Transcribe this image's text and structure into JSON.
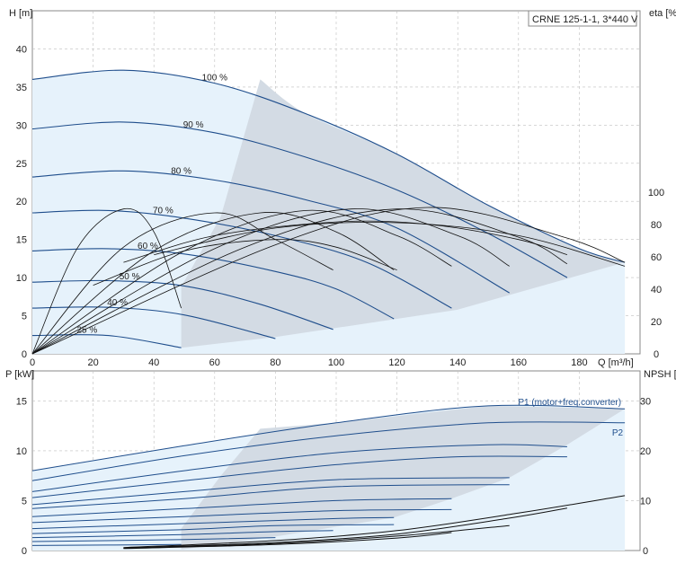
{
  "chart_data": [
    {
      "type": "line",
      "title": "CRNE 125-1-1, 3*440 V",
      "xlabel": "Q [m³/h]",
      "ylabel_left": "H [m]",
      "ylabel_right": "eta [%]",
      "x_ticks": [
        "0",
        "20",
        "40",
        "60",
        "80",
        "100",
        "120",
        "140",
        "160",
        "180"
      ],
      "y_ticks_left": [
        "0",
        "5",
        "10",
        "15",
        "20",
        "25",
        "30",
        "35",
        "40"
      ],
      "y_ticks_right": [
        "0",
        "20",
        "40",
        "60",
        "80",
        "100"
      ],
      "xlim": [
        0,
        200
      ],
      "ylim_left": [
        0,
        45
      ],
      "ylim_right": [
        0,
        212
      ],
      "grid": true,
      "colors": {
        "head": "#1f4e8c",
        "eta": "#111111",
        "area": "#d3dbe4",
        "area_light": "#e6f2fb",
        "grid": "#bfbfbf"
      },
      "series": [
        {
          "name": "100 %",
          "kind": "head",
          "points": [
            [
              0,
              36
            ],
            [
              30,
              37.2
            ],
            [
              60,
              35.5
            ],
            [
              90,
              31.5
            ],
            [
              120,
              26.2
            ],
            [
              150,
              19.5
            ],
            [
              180,
              13.8
            ],
            [
              195,
              12
            ]
          ]
        },
        {
          "name": "90 %",
          "kind": "head",
          "points": [
            [
              0,
              29.5
            ],
            [
              30,
              30.4
            ],
            [
              60,
              29
            ],
            [
              90,
              25.8
            ],
            [
              120,
              21.5
            ],
            [
              150,
              15.8
            ],
            [
              176,
              10
            ]
          ]
        },
        {
          "name": "80 %",
          "kind": "head",
          "points": [
            [
              0,
              23.2
            ],
            [
              30,
              24
            ],
            [
              60,
              22.8
            ],
            [
              90,
              20.2
            ],
            [
              120,
              16.5
            ],
            [
              157,
              8
            ]
          ]
        },
        {
          "name": "70 %",
          "kind": "head",
          "points": [
            [
              0,
              18.5
            ],
            [
              25,
              18.8
            ],
            [
              50,
              17.8
            ],
            [
              80,
              15.5
            ],
            [
              110,
              12
            ],
            [
              138,
              6
            ]
          ]
        },
        {
          "name": "60 %",
          "kind": "head",
          "points": [
            [
              0,
              13.5
            ],
            [
              25,
              13.8
            ],
            [
              50,
              13.1
            ],
            [
              80,
              10.8
            ],
            [
              100,
              8.5
            ],
            [
              119,
              4.6
            ]
          ]
        },
        {
          "name": "50 %",
          "kind": "head",
          "points": [
            [
              0,
              9.4
            ],
            [
              25,
              9.6
            ],
            [
              50,
              8.9
            ],
            [
              75,
              6.5
            ],
            [
              99,
              3.2
            ]
          ]
        },
        {
          "name": "40 %",
          "kind": "head",
          "points": [
            [
              0,
              6
            ],
            [
              25,
              6.1
            ],
            [
              50,
              5.1
            ],
            [
              80,
              2
            ]
          ]
        },
        {
          "name": "25 %",
          "kind": "head",
          "points": [
            [
              0,
              2.4
            ],
            [
              25,
              2.4
            ],
            [
              49,
              0.8
            ]
          ]
        },
        {
          "name": "",
          "kind": "eta",
          "points": [
            [
              0,
              0
            ],
            [
              15,
              14
            ],
            [
              30,
              19
            ],
            [
              40,
              16
            ],
            [
              49,
              6
            ]
          ]
        },
        {
          "name": "",
          "kind": "eta",
          "points": [
            [
              0,
              0
            ],
            [
              30,
              14
            ],
            [
              60,
              18.5
            ],
            [
              80,
              15
            ],
            [
              99,
              11
            ]
          ]
        },
        {
          "name": "",
          "kind": "eta",
          "points": [
            [
              0,
              0
            ],
            [
              40,
              13.5
            ],
            [
              75,
              18.5
            ],
            [
              100,
              16
            ],
            [
              119,
              11
            ]
          ]
        },
        {
          "name": "",
          "kind": "eta",
          "points": [
            [
              0,
              0
            ],
            [
              50,
              13.5
            ],
            [
              90,
              18.8
            ],
            [
              120,
              15.5
            ],
            [
              138,
              11.5
            ]
          ]
        },
        {
          "name": "",
          "kind": "eta",
          "points": [
            [
              0,
              0
            ],
            [
              60,
              13.8
            ],
            [
              105,
              19
            ],
            [
              140,
              15.5
            ],
            [
              157,
              11.5
            ]
          ]
        },
        {
          "name": "",
          "kind": "eta",
          "points": [
            [
              0,
              0
            ],
            [
              70,
              14
            ],
            [
              120,
              19
            ],
            [
              160,
              15.3
            ],
            [
              176,
              11.8
            ]
          ]
        },
        {
          "name": "",
          "kind": "eta",
          "points": [
            [
              0,
              0
            ],
            [
              80,
              14.3
            ],
            [
              130,
              19.2
            ],
            [
              175,
              15.3
            ],
            [
              195,
              12
            ]
          ]
        },
        {
          "name": "",
          "kind": "eta",
          "points": [
            [
              30,
              12
            ],
            [
              60,
              15.5
            ],
            [
              100,
              17.3
            ],
            [
              130,
              17
            ],
            [
              160,
              15
            ],
            [
              176,
              13
            ]
          ]
        },
        {
          "name": "",
          "kind": "eta",
          "points": [
            [
              40,
              13
            ],
            [
              80,
              16.5
            ],
            [
              120,
              17.2
            ],
            [
              160,
              15.5
            ],
            [
              195,
              11.5
            ]
          ]
        },
        {
          "name": "",
          "kind": "eta",
          "points": [
            [
              20,
              9
            ],
            [
              50,
              13.5
            ],
            [
              80,
              15
            ],
            [
              100,
              14
            ],
            [
              120,
              11
            ]
          ]
        }
      ]
    },
    {
      "type": "line",
      "title": "",
      "xlabel": "",
      "ylabel_left": "P [kW]",
      "ylabel_right": "NPSH [m]",
      "y_ticks_left": [
        "0",
        "5",
        "10",
        "15"
      ],
      "y_ticks_right": [
        "0",
        "10",
        "20",
        "30"
      ],
      "xlim": [
        0,
        200
      ],
      "ylim_left": [
        0,
        18
      ],
      "ylim_right": [
        0,
        36
      ],
      "grid": true,
      "series": [
        {
          "name": "P1 (motor+freq.converter)",
          "kind": "power",
          "points": [
            [
              0,
              8
            ],
            [
              50,
              10.5
            ],
            [
              100,
              12.8
            ],
            [
              150,
              14.5
            ],
            [
              195,
              14.2
            ]
          ]
        },
        {
          "name": "P2",
          "kind": "power",
          "points": [
            [
              0,
              7
            ],
            [
              50,
              9.5
            ],
            [
              100,
              11.5
            ],
            [
              150,
              12.8
            ],
            [
              195,
              12.8
            ]
          ]
        },
        {
          "name": "",
          "kind": "power",
          "points": [
            [
              0,
              5.9
            ],
            [
              50,
              8
            ],
            [
              100,
              9.8
            ],
            [
              150,
              10.6
            ],
            [
              176,
              10.4
            ]
          ]
        },
        {
          "name": "",
          "kind": "power",
          "points": [
            [
              0,
              5.3
            ],
            [
              50,
              7
            ],
            [
              100,
              8.6
            ],
            [
              140,
              9.4
            ],
            [
              176,
              9.4
            ]
          ]
        },
        {
          "name": "",
          "kind": "power",
          "points": [
            [
              0,
              4.6
            ],
            [
              50,
              5.9
            ],
            [
              100,
              7.1
            ],
            [
              157,
              7.3
            ]
          ]
        },
        {
          "name": "",
          "kind": "power",
          "points": [
            [
              0,
              4.2
            ],
            [
              50,
              5.2
            ],
            [
              100,
              6.4
            ],
            [
              157,
              6.6
            ]
          ]
        },
        {
          "name": "",
          "kind": "power",
          "points": [
            [
              0,
              3.4
            ],
            [
              50,
              4.2
            ],
            [
              100,
              5
            ],
            [
              138,
              5.2
            ]
          ]
        },
        {
          "name": "",
          "kind": "power",
          "points": [
            [
              0,
              2.8
            ],
            [
              50,
              3.4
            ],
            [
              100,
              4
            ],
            [
              138,
              4.1
            ]
          ]
        },
        {
          "name": "",
          "kind": "power",
          "points": [
            [
              0,
              2.2
            ],
            [
              50,
              2.7
            ],
            [
              100,
              3.2
            ],
            [
              119,
              3.3
            ]
          ]
        },
        {
          "name": "",
          "kind": "power",
          "points": [
            [
              0,
              1.7
            ],
            [
              50,
              2.1
            ],
            [
              80,
              2.5
            ],
            [
              119,
              2.6
            ]
          ]
        },
        {
          "name": "",
          "kind": "power",
          "points": [
            [
              0,
              1.3
            ],
            [
              50,
              1.6
            ],
            [
              80,
              1.9
            ],
            [
              99,
              2
            ]
          ]
        },
        {
          "name": "",
          "kind": "power",
          "points": [
            [
              0,
              0.9
            ],
            [
              50,
              1.1
            ],
            [
              80,
              1.3
            ]
          ]
        },
        {
          "name": "",
          "kind": "power",
          "points": [
            [
              0,
              0.5
            ],
            [
              49,
              0.6
            ]
          ]
        },
        {
          "name": "",
          "kind": "npsh",
          "points": [
            [
              30,
              0.6
            ],
            [
              80,
              2
            ],
            [
              120,
              4
            ],
            [
              160,
              7.5
            ],
            [
              195,
              11
            ]
          ]
        },
        {
          "name": "",
          "kind": "npsh",
          "points": [
            [
              30,
              0.5
            ],
            [
              80,
              1.6
            ],
            [
              120,
              3.3
            ],
            [
              157,
              6.5
            ],
            [
              176,
              8.5
            ]
          ]
        },
        {
          "name": "",
          "kind": "npsh",
          "points": [
            [
              30,
              0.5
            ],
            [
              80,
              1.4
            ],
            [
              120,
              2.9
            ],
            [
              157,
              5
            ]
          ]
        },
        {
          "name": "",
          "kind": "npsh",
          "points": [
            [
              30,
              0.4
            ],
            [
              80,
              1.2
            ],
            [
              120,
              2.5
            ],
            [
              138,
              3.6
            ]
          ]
        }
      ]
    }
  ]
}
